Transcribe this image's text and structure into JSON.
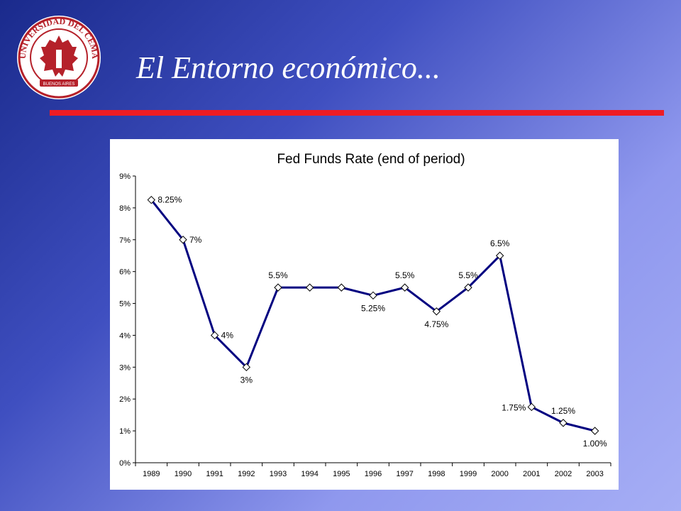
{
  "slide": {
    "title": "El Entorno económico...",
    "logo_ring_text": "UNIVERSIDAD DEL CEMA",
    "logo_banner_text": "BUENOS AIRES"
  },
  "colors": {
    "accent_rule": "#ee1c24",
    "series_line": "#000080",
    "logo_red": "#b5212a"
  },
  "icons": [
    "university-seal-icon"
  ],
  "chart_data": {
    "type": "line",
    "title": "Fed Funds Rate (end of period)",
    "xlabel": "",
    "ylabel": "",
    "categories": [
      "1989",
      "1990",
      "1991",
      "1992",
      "1993",
      "1994",
      "1995",
      "1996",
      "1997",
      "1998",
      "1999",
      "2000",
      "2001",
      "2002",
      "2003"
    ],
    "series": [
      {
        "values": [
          8.25,
          7,
          4,
          3,
          5.5,
          5.5,
          5.5,
          5.25,
          5.5,
          4.75,
          5.5,
          6.5,
          1.75,
          1.25,
          1.0
        ]
      }
    ],
    "ylim": [
      0,
      9
    ],
    "yticks": [
      "0%",
      "1%",
      "2%",
      "3%",
      "4%",
      "5%",
      "6%",
      "7%",
      "8%",
      "9%"
    ],
    "data_labels": [
      {
        "index": 0,
        "text": "8.25%",
        "pos": "right"
      },
      {
        "index": 1,
        "text": "7%",
        "pos": "right"
      },
      {
        "index": 2,
        "text": "4%",
        "pos": "right"
      },
      {
        "index": 3,
        "text": "3%",
        "pos": "below"
      },
      {
        "index": 4,
        "text": "5.5%",
        "pos": "above"
      },
      {
        "index": 7,
        "text": "5.25%",
        "pos": "below"
      },
      {
        "index": 8,
        "text": "5.5%",
        "pos": "above"
      },
      {
        "index": 9,
        "text": "4.75%",
        "pos": "below"
      },
      {
        "index": 10,
        "text": "5.5%",
        "pos": "above"
      },
      {
        "index": 11,
        "text": "6.5%",
        "pos": "above"
      },
      {
        "index": 12,
        "text": "1.75%",
        "pos": "left"
      },
      {
        "index": 13,
        "text": "1.25%",
        "pos": "above"
      },
      {
        "index": 14,
        "text": "1.00%",
        "pos": "below"
      }
    ],
    "markers": "hollow-diamond",
    "grid": false,
    "legend": "none"
  }
}
